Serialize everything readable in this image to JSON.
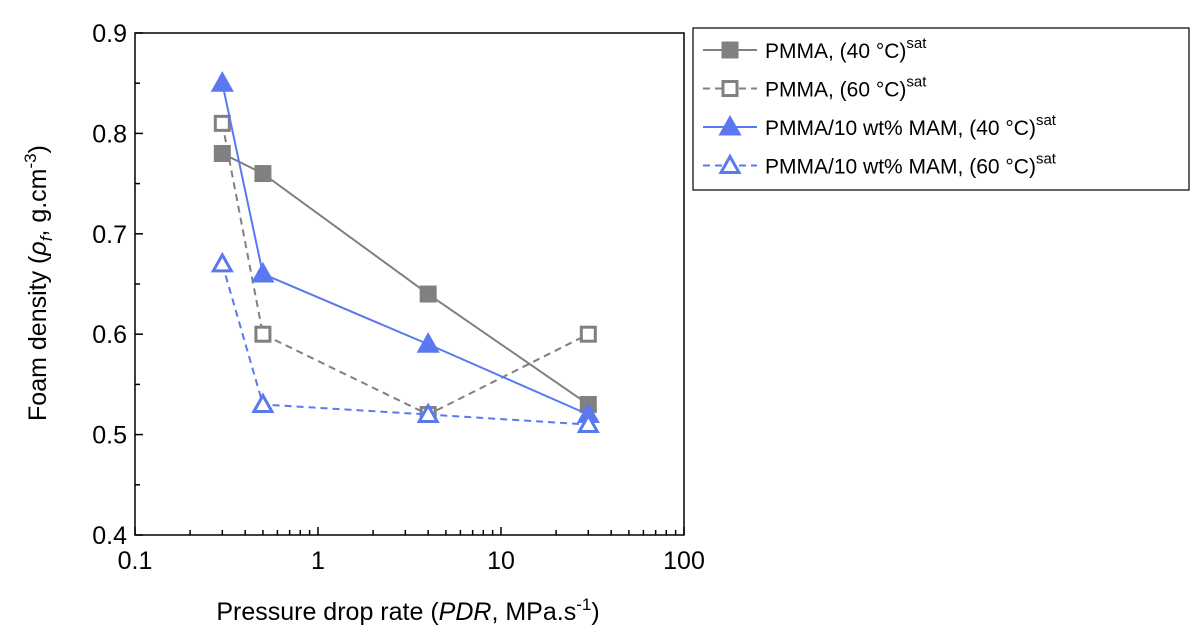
{
  "chart_data": {
    "type": "scatter",
    "xscale": "log",
    "xlim": [
      0.1,
      100
    ],
    "ylim": [
      0.4,
      0.9
    ],
    "xticks": [
      "0.1",
      "1",
      "10",
      "100"
    ],
    "yticks": [
      "0.4",
      "0.5",
      "0.6",
      "0.7",
      "0.8",
      "0.9"
    ],
    "xlabel": {
      "pre": "Pressure drop rate (",
      "italic": "PDR",
      "mid": ", MPa.s",
      "sup": "-1",
      "post": ")"
    },
    "ylabel": {
      "pre": "Foam density (",
      "italic": "ρ",
      "sub": "f",
      "mid": ", g.cm",
      "sup": "-3",
      "post": ")"
    },
    "legend_position": "outside-right",
    "grid": false,
    "series": [
      {
        "name": "PMMA, (40 °C)",
        "name_sup": "sat",
        "color": "#808080",
        "marker": "square",
        "filled": true,
        "dashed": false,
        "x": [
          0.3,
          0.5,
          4,
          30
        ],
        "y": [
          0.78,
          0.76,
          0.64,
          0.53
        ]
      },
      {
        "name": "PMMA, (60 °C)",
        "name_sup": "sat",
        "color": "#808080",
        "marker": "square",
        "filled": false,
        "dashed": true,
        "x": [
          0.3,
          0.5,
          4,
          30
        ],
        "y": [
          0.81,
          0.6,
          0.52,
          0.6
        ]
      },
      {
        "name": "PMMA/10 wt% MAM, (40 °C)",
        "name_sup": "sat",
        "color": "#5a78f0",
        "marker": "triangle",
        "filled": true,
        "dashed": false,
        "x": [
          0.3,
          0.5,
          4,
          30
        ],
        "y": [
          0.85,
          0.66,
          0.59,
          0.52
        ]
      },
      {
        "name": "PMMA/10 wt% MAM, (60 °C)",
        "name_sup": "sat",
        "color": "#5a78f0",
        "marker": "triangle",
        "filled": false,
        "dashed": true,
        "x": [
          0.3,
          0.5,
          4,
          30
        ],
        "y": [
          0.67,
          0.53,
          0.52,
          0.51
        ]
      }
    ]
  }
}
